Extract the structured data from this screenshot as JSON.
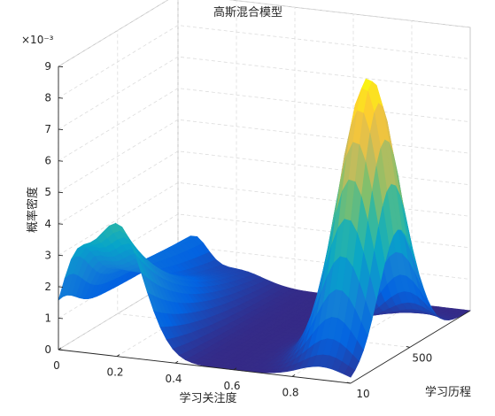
{
  "chart_data": {
    "type": "surface",
    "title": "高斯混合模型",
    "xlabel": "学习关注度",
    "ylabel": "学习历程",
    "zlabel": "概率密度",
    "z_exponent_label": "×10⁻³",
    "xlim": [
      0,
      1
    ],
    "ylim": [
      10,
      1000
    ],
    "zlim": [
      0,
      0.009
    ],
    "x_ticks": [
      0,
      0.2,
      0.4,
      0.6,
      0.8
    ],
    "x_tick_labels": [
      "0",
      "0.2",
      "0.4",
      "0.6",
      "0.8"
    ],
    "y_ticks": [
      10,
      500
    ],
    "y_tick_labels": [
      "10",
      "500"
    ],
    "z_ticks": [
      0,
      1,
      2,
      3,
      4,
      5,
      6,
      7,
      8,
      9
    ],
    "z_tick_labels": [
      "0",
      "1",
      "2",
      "3",
      "4",
      "5",
      "6",
      "7",
      "8",
      "9"
    ],
    "grid": true,
    "colormap": "parula",
    "components": [
      {
        "mu_x": 0.2,
        "sigma_x": 0.09,
        "peak_z": 0.0042,
        "y_profile": "decreasing"
      },
      {
        "mu_x": 0.9,
        "sigma_x": 0.08,
        "peak_z": 0.0087,
        "y_profile": "peaked_mid",
        "mu_y": 400
      },
      {
        "mu_x": 0.05,
        "sigma_x": 0.05,
        "peak_z": 0.0021,
        "y_profile": "edge"
      }
    ]
  }
}
